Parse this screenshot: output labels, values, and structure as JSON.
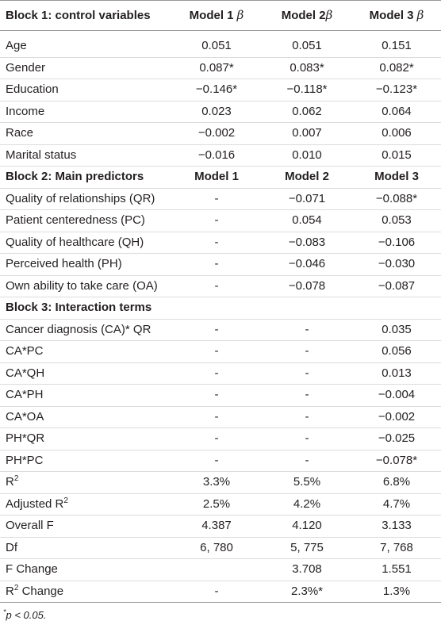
{
  "header": {
    "col0": "Block 1: control variables",
    "col1": "Model 1",
    "col1_beta": "β",
    "col2": "Model 2",
    "col2_beta": "β",
    "col3": "Model 3",
    "col3_beta": "β"
  },
  "block1": [
    {
      "label": "Age",
      "m1": "0.051",
      "m2": "0.051",
      "m3": "0.151"
    },
    {
      "label": "Gender",
      "m1": "0.087*",
      "m2": "0.083*",
      "m3": "0.082*"
    },
    {
      "label": "Education",
      "m1": "−0.146*",
      "m2": "−0.118*",
      "m3": "−0.123*"
    },
    {
      "label": "Income",
      "m1": "0.023",
      "m2": "0.062",
      "m3": "0.064"
    },
    {
      "label": "Race",
      "m1": "−0.002",
      "m2": "0.007",
      "m3": "0.006"
    },
    {
      "label": "Marital status",
      "m1": "−0.016",
      "m2": "0.010",
      "m3": "0.015"
    }
  ],
  "block2_header": {
    "label": "Block 2: Main predictors",
    "m1": "Model 1",
    "m2": "Model 2",
    "m3": "Model 3"
  },
  "block2": [
    {
      "label": "Quality of relationships (QR)",
      "m1": "-",
      "m2": "−0.071",
      "m3": "−0.088*"
    },
    {
      "label": "Patient centeredness (PC)",
      "m1": "-",
      "m2": "0.054",
      "m3": "0.053"
    },
    {
      "label": "Quality of healthcare (QH)",
      "m1": "-",
      "m2": "−0.083",
      "m3": "−0.106"
    },
    {
      "label": "Perceived health (PH)",
      "m1": "-",
      "m2": "−0.046",
      "m3": "−0.030"
    },
    {
      "label": "Own ability to take care (OA)",
      "m1": "-",
      "m2": "−0.078",
      "m3": "−0.087"
    }
  ],
  "block3_header": {
    "label": "Block 3: Interaction terms"
  },
  "block3": [
    {
      "label": "Cancer diagnosis (CA)* QR",
      "m1": "-",
      "m2": "-",
      "m3": "0.035"
    },
    {
      "label": "CA*PC",
      "m1": "-",
      "m2": "-",
      "m3": "0.056"
    },
    {
      "label": "CA*QH",
      "m1": "-",
      "m2": "-",
      "m3": "0.013"
    },
    {
      "label": "CA*PH",
      "m1": "-",
      "m2": "-",
      "m3": "−0.004"
    },
    {
      "label": "CA*OA",
      "m1": "-",
      "m2": "-",
      "m3": "−0.002"
    },
    {
      "label": "PH*QR",
      "m1": "-",
      "m2": "-",
      "m3": "−0.025"
    },
    {
      "label": "PH*PC",
      "m1": "-",
      "m2": "-",
      "m3": "−0.078*"
    }
  ],
  "stats": {
    "r2": {
      "label": "R",
      "sup": "2",
      "m1": "3.3%",
      "m2": "5.5%",
      "m3": "6.8%"
    },
    "adj_r2": {
      "label": "Adjusted R",
      "sup": "2",
      "m1": "2.5%",
      "m2": "4.2%",
      "m3": "4.7%"
    },
    "overall_f": {
      "label": "Overall F",
      "m1": "4.387",
      "m2": "4.120",
      "m3": "3.133"
    },
    "df": {
      "label": "Df",
      "m1": "6, 780",
      "m2": "5, 775",
      "m3": "7, 768"
    },
    "f_change": {
      "label": "F Change",
      "m1": "",
      "m2": "3.708",
      "m3": "1.551"
    },
    "r2_change": {
      "label": "R",
      "sup": "2",
      "label_suffix": " Change",
      "m1": "-",
      "m2": "2.3%*",
      "m3": "1.3%"
    }
  },
  "footnote": {
    "sup": "*",
    "text": "p < 0.05."
  }
}
